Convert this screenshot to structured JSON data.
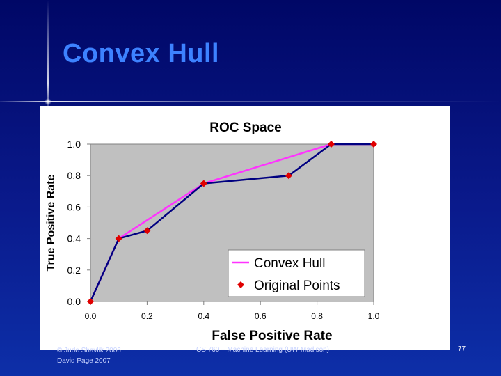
{
  "slide": {
    "title": "Convex Hull",
    "footer_left_line1": "© Jude Shavlik 2006",
    "footer_left_line2": "David Page 2007",
    "footer_center": "CS 760 – Machine Learning (UW-Madison)",
    "page_number": "77"
  },
  "colors": {
    "background": "#0a1a8c",
    "title": "#3d82ff",
    "plot_area": "#c0c0c0",
    "hull_line": "#ff33ff",
    "points_line": "#000080",
    "marker": "#e00000"
  },
  "chart_data": {
    "type": "line",
    "title": "ROC Space",
    "xlabel": "False Positive Rate",
    "ylabel": "True Positive Rate",
    "xlim": [
      0,
      1
    ],
    "ylim": [
      0,
      1
    ],
    "xticks": [
      "0.0",
      "0.2",
      "0.4",
      "0.6",
      "0.8",
      "1.0"
    ],
    "yticks": [
      "0.0",
      "0.2",
      "0.4",
      "0.6",
      "0.8",
      "1.0"
    ],
    "grid": false,
    "legend_position": "bottom-right",
    "series": [
      {
        "name": "Convex Hull",
        "color": "#ff33ff",
        "x": [
          0,
          0.1,
          0.4,
          0.85,
          1.0
        ],
        "y": [
          0,
          0.4,
          0.75,
          1.0,
          1.0
        ]
      },
      {
        "name": "Original Points",
        "color": "#000080",
        "marker_color": "#e00000",
        "x": [
          0,
          0.1,
          0.2,
          0.4,
          0.7,
          0.85,
          1.0
        ],
        "y": [
          0,
          0.4,
          0.45,
          0.75,
          0.8,
          1.0,
          1.0
        ]
      }
    ]
  }
}
